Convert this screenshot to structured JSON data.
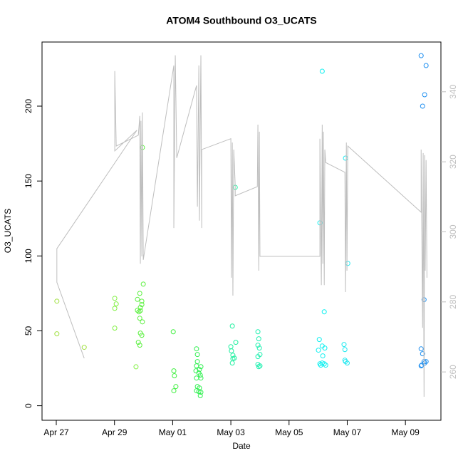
{
  "chart_data": {
    "type": "scatter",
    "title": "ATOM4 Southbound O3_UCATS",
    "x_label": "Date",
    "y_label": "O3_UCATS",
    "xlim": [
      -0.49,
      13.22
    ],
    "ylim": [
      -9.7,
      242.8
    ],
    "y2lim": [
      246.2,
      354.2
    ],
    "xticks": [
      {
        "value": 0,
        "label": "Apr 27"
      },
      {
        "value": 2,
        "label": "Apr 29"
      },
      {
        "value": 4,
        "label": "May 01"
      },
      {
        "value": 6,
        "label": "May 03"
      },
      {
        "value": 8,
        "label": "May 05"
      },
      {
        "value": 10,
        "label": "May 07"
      },
      {
        "value": 12,
        "label": "May 09"
      }
    ],
    "yticks": [
      0,
      50,
      100,
      150,
      200
    ],
    "y2ticks": [
      260,
      280,
      300,
      320,
      340
    ],
    "y2_color": "#bebebe",
    "grid": false,
    "series": [
      {
        "type": "scatter",
        "x": [
          0.02,
          0.02,
          0.96,
          2.01,
          2.06,
          2.01,
          2.01,
          2.74,
          2.96,
          2.99,
          2.87,
          2.79,
          2.94,
          2.94,
          2.89,
          2.79,
          2.84,
          2.89,
          2.87,
          2.96,
          2.89,
          2.94,
          2.82,
          2.87,
          4.02,
          4.04,
          4.06,
          4.11,
          4.04,
          4.82,
          4.85,
          4.85,
          4.82,
          4.97,
          4.8,
          4.92,
          4.9,
          4.95,
          4.82,
          4.97,
          4.85,
          4.92,
          4.9,
          4.97,
          4.82,
          4.95,
          6.15,
          6.05,
          6.0,
          6.17,
          6.02,
          6.07,
          6.07,
          6.12,
          6.05,
          6.93,
          6.96,
          6.93,
          6.98,
          7.0,
          6.93,
          6.93,
          7.0,
          6.96,
          9.14,
          9.06,
          9.21,
          9.04,
          9.14,
          9.01,
          9.23,
          9.16,
          9.06,
          9.14,
          9.21,
          9.26,
          9.09,
          9.94,
          10.02,
          9.89,
          9.92,
          9.94,
          9.92,
          10.0,
          12.54,
          12.71,
          12.66,
          12.59,
          12.64,
          12.54,
          12.59,
          12.64,
          12.71,
          12.56,
          12.66,
          12.54
        ],
        "values": [
          69.8,
          48,
          39,
          71.7,
          68,
          65,
          51.8,
          26,
          172.4,
          81.2,
          75,
          71,
          69.8,
          67.5,
          65.6,
          63.7,
          62.7,
          63.5,
          58.4,
          56,
          48.5,
          47,
          42.3,
          40.4,
          49.4,
          23.3,
          20,
          12.8,
          10,
          38,
          34.2,
          29.5,
          26.6,
          26.1,
          23.3,
          24.2,
          21.9,
          20.4,
          18.5,
          18.5,
          12.8,
          11.9,
          9.5,
          9,
          10,
          6.7,
          145.8,
          53.2,
          39.4,
          42.3,
          36.6,
          33.7,
          31.4,
          31.8,
          28.5,
          49.4,
          44.7,
          40.4,
          38.5,
          34.2,
          32.8,
          27.6,
          26.6,
          26.1,
          223.3,
          122.1,
          62.7,
          44.2,
          39.9,
          37.1,
          38.5,
          33.3,
          28,
          28.5,
          28,
          27.1,
          27.1,
          165.3,
          95,
          40.9,
          37.5,
          29.5,
          30.4,
          28.5,
          233.7,
          227.1,
          207.6,
          200,
          70.8,
          38,
          34.7,
          29.5,
          29.5,
          27.1,
          28.5,
          26.6
        ],
        "colors": [
          "#a0e040",
          "#a0e040",
          "#a0e040",
          "#80f040",
          "#80f040",
          "#80f040",
          "#80f040",
          "#80f040",
          "#5cf040",
          "#5cf040",
          "#5cf040",
          "#5cf040",
          "#5cf040",
          "#5cf040",
          "#5cf040",
          "#5cf040",
          "#5cf040",
          "#5cf040",
          "#5cf040",
          "#5cf040",
          "#5cf040",
          "#5cf040",
          "#5cf040",
          "#5cf040",
          "#40f040",
          "#40f040",
          "#40f040",
          "#40f040",
          "#40f040",
          "#30f050",
          "#30f050",
          "#30f050",
          "#30f050",
          "#30f050",
          "#30f050",
          "#30f050",
          "#30f050",
          "#30f050",
          "#30f050",
          "#30f050",
          "#30f050",
          "#30f050",
          "#30f050",
          "#30f050",
          "#30f050",
          "#30f050",
          "#20f0a0",
          "#20f0a0",
          "#20f0a0",
          "#20f0a0",
          "#20f0a0",
          "#20f0a0",
          "#20f0a0",
          "#20f0a0",
          "#20f0a0",
          "#20f0b0",
          "#20f0b0",
          "#20f0b0",
          "#20f0b0",
          "#20f0b0",
          "#20f0b0",
          "#20f0b0",
          "#20f0b0",
          "#20f0b0",
          "#10f0f0",
          "#10f0f0",
          "#10f0f0",
          "#10f0f0",
          "#10f0f0",
          "#10f0f0",
          "#10f0f0",
          "#10f0f0",
          "#10f0f0",
          "#10f0f0",
          "#10f0f0",
          "#10f0f0",
          "#10f0f0",
          "#20e8f0",
          "#20e8f0",
          "#20e8f0",
          "#20e8f0",
          "#20e8f0",
          "#20e8f0",
          "#20e8f0",
          "#2090f0",
          "#2090f0",
          "#2090f0",
          "#2090f0",
          "#2090f0",
          "#2090f0",
          "#2090f0",
          "#2090f0",
          "#2090f0",
          "#2090f0",
          "#2090f0",
          "#2090f0"
        ]
      },
      {
        "type": "line",
        "axis": "y2",
        "color": "#bebebe",
        "x": [
          0.96,
          0.02,
          0.02,
          2.77,
          2.01,
          2.01,
          2.06,
          2.82,
          2.87,
          2.89,
          2.91,
          2.94,
          2.96,
          2.99,
          4.04,
          4.04,
          4.09,
          4.14,
          4.82,
          4.85,
          4.9,
          4.92,
          4.97,
          5.0,
          5.0,
          6.0,
          6.02,
          6.05,
          6.07,
          6.1,
          6.15,
          6.15,
          6.91,
          6.93,
          6.96,
          6.98,
          7.0,
          9.06,
          9.06,
          9.11,
          9.14,
          9.16,
          9.18,
          9.21,
          9.23,
          9.26,
          9.92,
          9.94,
          9.97,
          9.99,
          10.02,
          12.54,
          12.54,
          12.59,
          12.61,
          12.64,
          12.66,
          12.68,
          12.71,
          12.74
        ],
        "values": [
          263.9,
          285.6,
          295.2,
          329.0,
          323.1,
          345.9,
          324.5,
          327.6,
          333.1,
          290.9,
          331.7,
          293.0,
          334.1,
          292.0,
          347.5,
          301.1,
          350.4,
          321.1,
          341.8,
          307.2,
          347.5,
          303.2,
          350.4,
          301.1,
          323.5,
          326.6,
          286.9,
          325.5,
          281.8,
          323.5,
          313.3,
          310.3,
          312.9,
          330.6,
          288.9,
          328.6,
          293.0,
          293.0,
          326.6,
          284.8,
          330.6,
          290.9,
          328.6,
          284.8,
          323.5,
          319.8,
          317.0,
          282.8,
          325.5,
          288.9,
          324.5,
          305.6,
          323.5,
          272.6,
          322.5,
          252.9,
          321.9,
          288.9,
          320.5,
          286.9
        ]
      }
    ]
  }
}
